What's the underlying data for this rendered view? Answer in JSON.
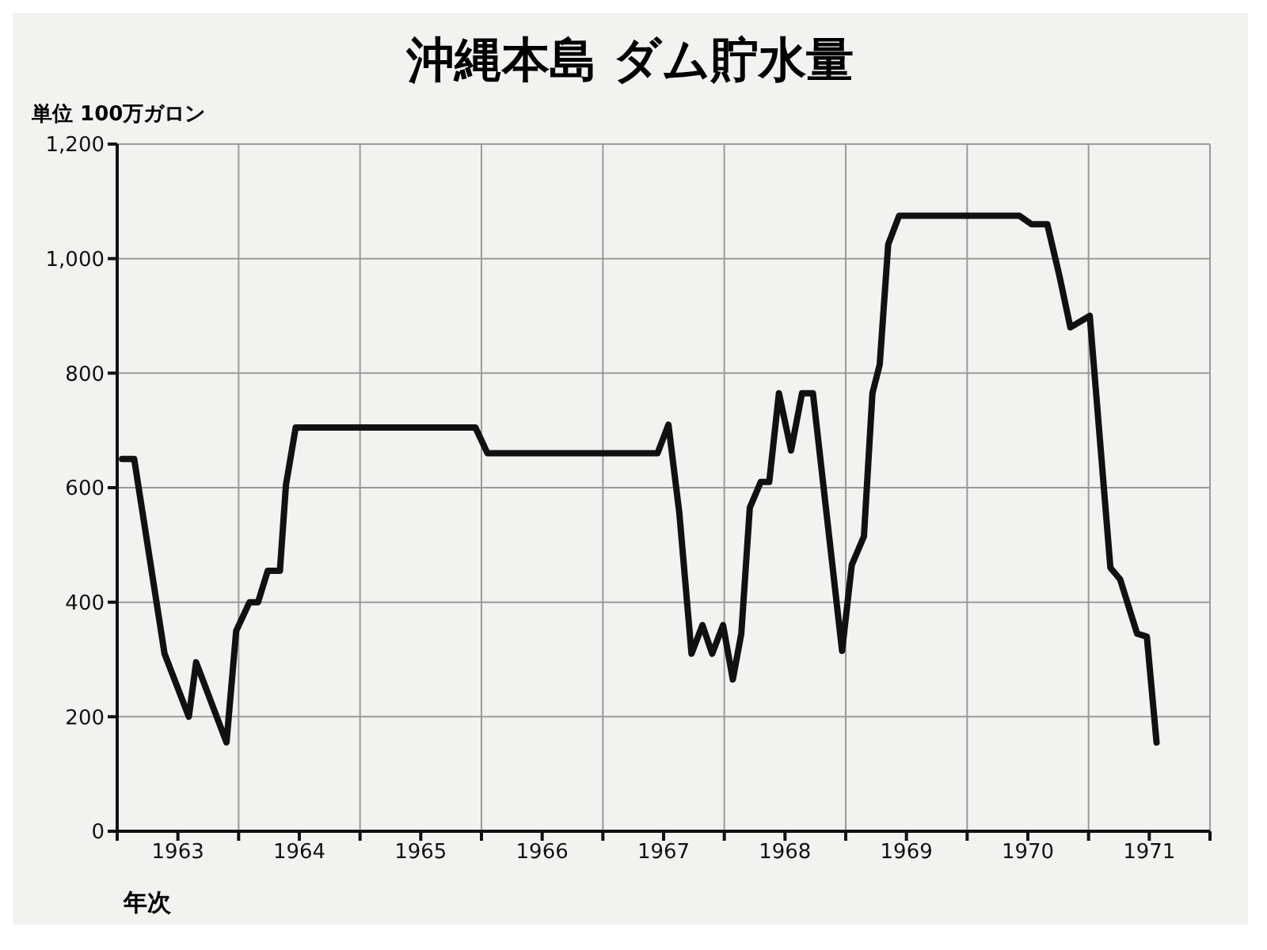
{
  "chart_data": {
    "type": "line",
    "title": "沖縄本島 ダム貯水量",
    "ylabel": "単位 100万ガロン",
    "xlabel": "年次",
    "xlim": [
      1963,
      1972
    ],
    "xticks": [
      {
        "value": 1963,
        "label": null
      },
      {
        "value": 1963.5,
        "label": "1963"
      },
      {
        "value": 1964,
        "label": null
      },
      {
        "value": 1964.5,
        "label": "1964"
      },
      {
        "value": 1965,
        "label": null
      },
      {
        "value": 1965.5,
        "label": "1965"
      },
      {
        "value": 1966,
        "label": null
      },
      {
        "value": 1966.5,
        "label": "1966"
      },
      {
        "value": 1967,
        "label": null
      },
      {
        "value": 1967.5,
        "label": "1967"
      },
      {
        "value": 1968,
        "label": null
      },
      {
        "value": 1968.5,
        "label": "1968"
      },
      {
        "value": 1969,
        "label": null
      },
      {
        "value": 1969.5,
        "label": "1969"
      },
      {
        "value": 1970,
        "label": null
      },
      {
        "value": 1970.5,
        "label": "1970"
      },
      {
        "value": 1971,
        "label": null
      },
      {
        "value": 1971.5,
        "label": "1971"
      },
      {
        "value": 1972,
        "label": null
      }
    ],
    "ylim": [
      0,
      1200
    ],
    "yticks": [
      {
        "value": 0,
        "label": "0"
      },
      {
        "value": 200,
        "label": "200"
      },
      {
        "value": 400,
        "label": "400"
      },
      {
        "value": 600,
        "label": "600"
      },
      {
        "value": 800,
        "label": "800"
      },
      {
        "value": 1000,
        "label": "1,000"
      },
      {
        "value": 1200,
        "label": "1,200"
      }
    ],
    "grid": true,
    "marker": "none",
    "line_style": "solid",
    "x": [
      1963.04,
      1963.14,
      1963.39,
      1963.59,
      1963.65,
      1963.9,
      1963.98,
      1964.09,
      1964.16,
      1964.24,
      1964.34,
      1964.39,
      1964.47,
      1965.95,
      1966.05,
      1967.45,
      1967.54,
      1967.63,
      1967.73,
      1967.82,
      1967.9,
      1967.99,
      1968.07,
      1968.14,
      1968.21,
      1968.3,
      1968.37,
      1968.45,
      1968.55,
      1968.64,
      1968.73,
      1968.97,
      1969.05,
      1969.15,
      1969.22,
      1969.28,
      1969.35,
      1969.44,
      1970.43,
      1970.53,
      1970.66,
      1970.76,
      1970.85,
      1971.01,
      1971.18,
      1971.26,
      1971.4,
      1971.48,
      1971.56
    ],
    "series": [
      {
        "color": "#111111",
        "values": [
          650,
          650,
          310,
          200,
          295,
          155,
          350,
          400,
          400,
          455,
          455,
          605,
          705,
          705,
          660,
          660,
          710,
          555,
          310,
          360,
          310,
          360,
          265,
          345,
          565,
          610,
          610,
          765,
          665,
          765,
          765,
          315,
          465,
          515,
          765,
          815,
          1025,
          1075,
          1075,
          1060,
          1060,
          970,
          880,
          900,
          460,
          440,
          345,
          340,
          155
        ]
      }
    ]
  }
}
